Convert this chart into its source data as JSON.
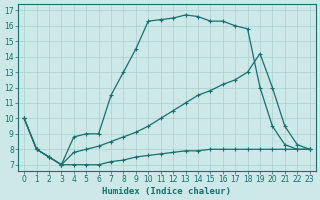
{
  "xlabel": "Humidex (Indice chaleur)",
  "bg_color": "#cce8e8",
  "grid_color": "#aacfcf",
  "line_color": "#1a6e6e",
  "xlim": [
    -0.5,
    23.5
  ],
  "ylim": [
    6.6,
    17.4
  ],
  "xticks": [
    0,
    1,
    2,
    3,
    4,
    5,
    6,
    7,
    8,
    9,
    10,
    11,
    12,
    13,
    14,
    15,
    16,
    17,
    18,
    19,
    20,
    21,
    22,
    23
  ],
  "yticks": [
    7,
    8,
    9,
    10,
    11,
    12,
    13,
    14,
    15,
    16,
    17
  ],
  "curve_bell_x": [
    0,
    1,
    2,
    3,
    4,
    5,
    6,
    7,
    8,
    9,
    10,
    11,
    12,
    13,
    14,
    15,
    16,
    17,
    18,
    19,
    20,
    21,
    22,
    23
  ],
  "curve_bell_y": [
    10,
    8,
    7.5,
    7,
    8.8,
    9.0,
    9.0,
    11.5,
    13.0,
    14.5,
    16.3,
    16.4,
    16.5,
    16.7,
    16.6,
    16.3,
    16.3,
    16.0,
    15.8,
    12.0,
    9.5,
    8.3,
    8.0,
    8.0
  ],
  "curve_diag_x": [
    0,
    1,
    2,
    3,
    4,
    5,
    6,
    7,
    8,
    9,
    10,
    11,
    12,
    13,
    14,
    15,
    16,
    17,
    18,
    19,
    20,
    21,
    22,
    23
  ],
  "curve_diag_y": [
    10,
    8,
    7.5,
    7,
    7.8,
    8.0,
    8.2,
    8.5,
    8.8,
    9.1,
    9.5,
    10.0,
    10.5,
    11.0,
    11.5,
    11.8,
    12.2,
    12.5,
    13.0,
    14.2,
    12.0,
    9.5,
    8.3,
    8.0
  ],
  "curve_flat_x": [
    0,
    1,
    2,
    3,
    4,
    5,
    6,
    7,
    8,
    9,
    10,
    11,
    12,
    13,
    14,
    15,
    16,
    17,
    18,
    19,
    20,
    21,
    22,
    23
  ],
  "curve_flat_y": [
    10,
    8,
    7.5,
    7,
    7.0,
    7.0,
    7.0,
    7.2,
    7.3,
    7.5,
    7.6,
    7.7,
    7.8,
    7.9,
    7.9,
    8.0,
    8.0,
    8.0,
    8.0,
    8.0,
    8.0,
    8.0,
    8.0,
    8.0
  ]
}
